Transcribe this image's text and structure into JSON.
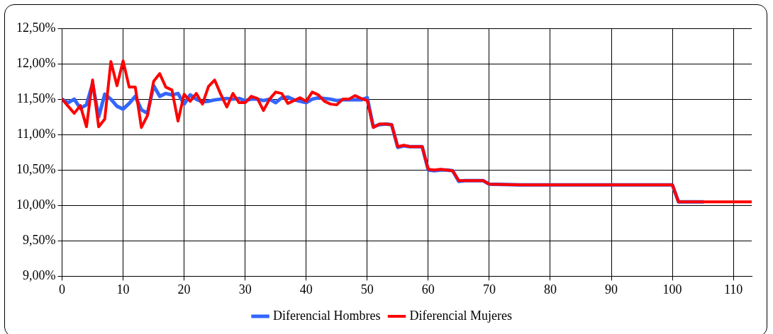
{
  "chart_data": {
    "type": "line",
    "x": [
      0,
      1,
      2,
      3,
      4,
      5,
      6,
      7,
      8,
      9,
      10,
      11,
      12,
      13,
      14,
      15,
      16,
      17,
      18,
      19,
      20,
      21,
      22,
      23,
      24,
      25,
      26,
      27,
      28,
      29,
      30,
      31,
      32,
      33,
      34,
      35,
      36,
      37,
      38,
      39,
      40,
      41,
      42,
      43,
      44,
      45,
      46,
      47,
      48,
      49,
      50,
      51,
      52,
      53,
      54,
      55,
      56,
      57,
      58,
      59,
      60,
      61,
      62,
      63,
      64,
      65,
      66,
      67,
      68,
      69,
      70,
      75,
      80,
      85,
      90,
      95,
      100,
      101,
      105,
      110,
      113
    ],
    "series": [
      {
        "name": "Diferencial Hombres",
        "color": "#3366ff",
        "values": [
          11.5,
          11.45,
          11.5,
          11.37,
          11.42,
          11.72,
          11.25,
          11.57,
          11.5,
          11.4,
          11.36,
          11.44,
          11.54,
          11.35,
          11.3,
          11.69,
          11.54,
          11.58,
          11.56,
          11.58,
          11.43,
          11.56,
          11.5,
          11.46,
          11.47,
          11.49,
          11.5,
          11.51,
          11.5,
          11.51,
          11.48,
          11.5,
          11.5,
          11.48,
          11.5,
          11.45,
          11.52,
          11.53,
          11.49,
          11.47,
          11.45,
          11.5,
          11.52,
          11.51,
          11.5,
          11.48,
          11.49,
          11.49,
          11.49,
          11.49,
          11.52,
          11.11,
          11.14,
          11.15,
          11.14,
          10.82,
          10.84,
          10.83,
          10.83,
          10.83,
          10.5,
          10.49,
          10.5,
          10.5,
          10.49,
          10.34,
          10.35,
          10.35,
          10.35,
          10.35,
          10.3,
          10.29,
          10.29,
          10.29,
          10.29,
          10.29,
          10.29,
          10.05,
          10.05,
          null,
          null
        ]
      },
      {
        "name": "Diferencial Mujeres",
        "color": "#ff0000",
        "values": [
          11.5,
          11.4,
          11.3,
          11.41,
          11.11,
          11.77,
          11.11,
          11.22,
          12.03,
          11.69,
          12.04,
          11.67,
          11.67,
          11.1,
          11.27,
          11.75,
          11.86,
          11.67,
          11.63,
          11.19,
          11.57,
          11.47,
          11.58,
          11.43,
          11.68,
          11.77,
          11.57,
          11.39,
          11.58,
          11.45,
          11.45,
          11.54,
          11.51,
          11.34,
          11.5,
          11.6,
          11.58,
          11.44,
          11.48,
          11.52,
          11.47,
          11.6,
          11.56,
          11.47,
          11.43,
          11.42,
          11.5,
          11.5,
          11.55,
          11.51,
          11.48,
          11.1,
          11.15,
          11.15,
          11.14,
          10.83,
          10.85,
          10.83,
          10.83,
          10.83,
          10.51,
          10.5,
          10.51,
          10.5,
          10.49,
          10.35,
          10.35,
          10.35,
          10.35,
          10.35,
          10.3,
          10.29,
          10.29,
          10.29,
          10.29,
          10.29,
          10.29,
          10.05,
          10.05,
          10.05,
          10.05
        ]
      }
    ],
    "xlim": [
      0,
      113
    ],
    "xticks": [
      0,
      10,
      20,
      30,
      40,
      50,
      60,
      70,
      80,
      90,
      100,
      110
    ],
    "ylim": [
      9,
      12.5
    ],
    "yticks": [
      {
        "value": 9,
        "label": "9,00%"
      },
      {
        "value": 9.5,
        "label": "9,50%"
      },
      {
        "value": 10,
        "label": "10,00%"
      },
      {
        "value": 10.5,
        "label": "10,50%"
      },
      {
        "value": 11,
        "label": "11,00%"
      },
      {
        "value": 11.5,
        "label": "11,50%"
      },
      {
        "value": 12,
        "label": "12,00%"
      },
      {
        "value": 12.5,
        "label": "12,50%"
      }
    ],
    "grid": true,
    "legend": "bottom",
    "marker": "none",
    "line_style": "solid"
  }
}
